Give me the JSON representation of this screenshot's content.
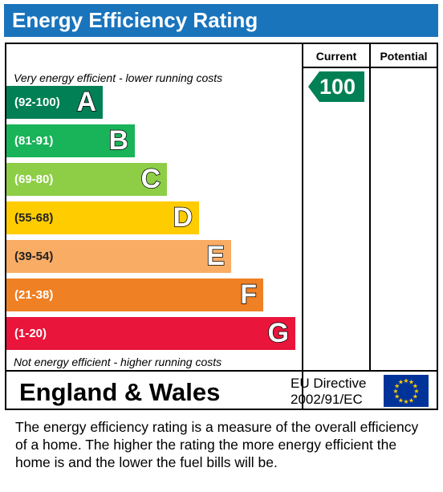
{
  "title": "Energy Efficiency Rating",
  "columns": {
    "current": "Current",
    "potential": "Potential"
  },
  "top_note": "Very energy efficient - lower running costs",
  "bottom_note": "Not energy efficient - higher running costs",
  "bands": [
    {
      "letter": "A",
      "range": "(92-100)",
      "color": "#008054"
    },
    {
      "letter": "B",
      "range": "(81-91)",
      "color": "#19b459"
    },
    {
      "letter": "C",
      "range": "(69-80)",
      "color": "#8dce46"
    },
    {
      "letter": "D",
      "range": "(55-68)",
      "color": "#ffcc00"
    },
    {
      "letter": "E",
      "range": "(39-54)",
      "color": "#f9ac64"
    },
    {
      "letter": "F",
      "range": "(21-38)",
      "color": "#ef8023"
    },
    {
      "letter": "G",
      "range": "(1-20)",
      "color": "#e9153b"
    }
  ],
  "current_rating": {
    "value": "100",
    "band": "A"
  },
  "potential_rating": null,
  "footer": {
    "region": "England & Wales",
    "directive_line1": "EU Directive",
    "directive_line2": "2002/91/EC",
    "flag_icon": "eu-flag-icon"
  },
  "description": "The energy efficiency rating is a measure of the overall efficiency of a home.  The higher the rating the more energy efficient the home is and the lower the fuel bills will be."
}
